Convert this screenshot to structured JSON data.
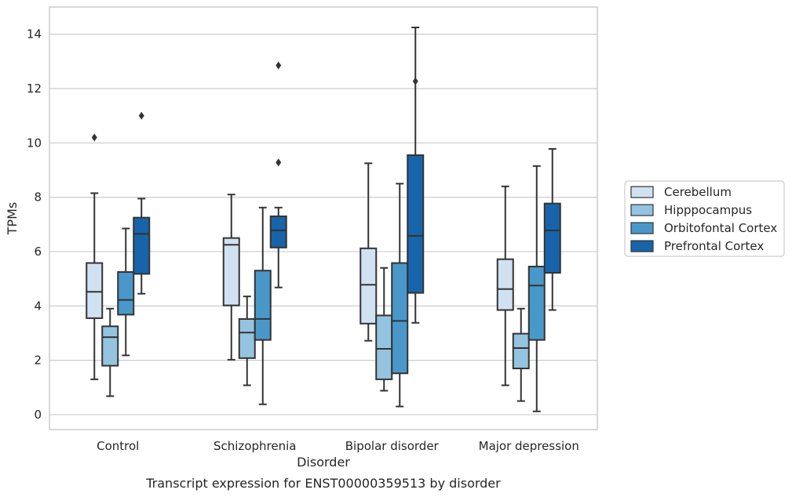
{
  "chart_data": {
    "type": "box",
    "title": "",
    "caption": "Transcript expression for ENST00000359513 by disorder",
    "xlabel": "Disorder",
    "ylabel": "TPMs",
    "ylim": [
      -0.55,
      15.0
    ],
    "yticks": [
      0,
      2,
      4,
      6,
      8,
      10,
      12,
      14
    ],
    "grid": "horizontal",
    "legend_position": "right",
    "categories": [
      "Control",
      "Schizophrenia",
      "Bipolar disorder",
      "Major depression"
    ],
    "series": [
      {
        "name": "Cerebellum",
        "color": "#d0e1f2",
        "boxes": [
          {
            "whisker_low": 1.3,
            "q1": 3.55,
            "median": 4.52,
            "q3": 5.58,
            "whisker_high": 8.15,
            "outliers": [
              10.2
            ]
          },
          {
            "whisker_low": 2.02,
            "q1": 4.02,
            "median": 6.25,
            "q3": 6.5,
            "whisker_high": 8.1,
            "outliers": []
          },
          {
            "whisker_low": 2.72,
            "q1": 3.35,
            "median": 4.78,
            "q3": 6.12,
            "whisker_high": 9.25,
            "outliers": []
          },
          {
            "whisker_low": 1.08,
            "q1": 3.85,
            "median": 4.62,
            "q3": 5.72,
            "whisker_high": 8.4,
            "outliers": []
          }
        ]
      },
      {
        "name": "Hipppocampus",
        "color": "#94c4df",
        "boxes": [
          {
            "whisker_low": 0.68,
            "q1": 1.8,
            "median": 2.85,
            "q3": 3.25,
            "whisker_high": 3.9,
            "outliers": []
          },
          {
            "whisker_low": 1.08,
            "q1": 2.08,
            "median": 3.02,
            "q3": 3.52,
            "whisker_high": 4.35,
            "outliers": []
          },
          {
            "whisker_low": 0.88,
            "q1": 1.3,
            "median": 2.42,
            "q3": 3.65,
            "whisker_high": 5.4,
            "outliers": []
          },
          {
            "whisker_low": 0.5,
            "q1": 1.7,
            "median": 2.45,
            "q3": 2.98,
            "whisker_high": 3.9,
            "outliers": []
          }
        ]
      },
      {
        "name": "Orbitofontal Cortex",
        "color": "#4a98c9",
        "boxes": [
          {
            "whisker_low": 2.18,
            "q1": 3.68,
            "median": 4.22,
            "q3": 5.25,
            "whisker_high": 6.85,
            "outliers": []
          },
          {
            "whisker_low": 0.38,
            "q1": 2.75,
            "median": 3.52,
            "q3": 5.3,
            "whisker_high": 7.62,
            "outliers": []
          },
          {
            "whisker_low": 0.3,
            "q1": 1.52,
            "median": 3.45,
            "q3": 5.58,
            "whisker_high": 8.5,
            "outliers": []
          },
          {
            "whisker_low": 0.12,
            "q1": 2.75,
            "median": 4.75,
            "q3": 5.45,
            "whisker_high": 9.15,
            "outliers": []
          }
        ]
      },
      {
        "name": "Prefrontal Cortex",
        "color": "#1764ab",
        "boxes": [
          {
            "whisker_low": 4.45,
            "q1": 5.18,
            "median": 6.65,
            "q3": 7.25,
            "whisker_high": 7.95,
            "outliers": [
              11.0
            ]
          },
          {
            "whisker_low": 4.68,
            "q1": 6.15,
            "median": 6.78,
            "q3": 7.3,
            "whisker_high": 7.62,
            "outliers": [
              12.85,
              9.28
            ]
          },
          {
            "whisker_low": 3.38,
            "q1": 4.48,
            "median": 6.58,
            "q3": 9.55,
            "whisker_high": 14.25,
            "outliers": [
              12.27
            ]
          },
          {
            "whisker_low": 3.85,
            "q1": 5.22,
            "median": 6.78,
            "q3": 7.77,
            "whisker_high": 9.78,
            "outliers": []
          }
        ]
      }
    ]
  }
}
